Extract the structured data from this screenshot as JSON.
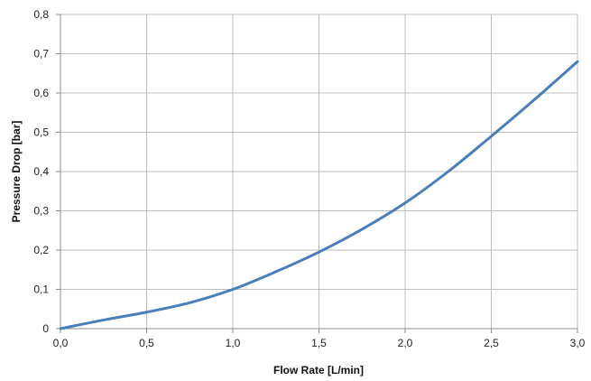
{
  "chart_data": {
    "type": "line",
    "title": "",
    "xlabel": "Flow Rate [L/min]",
    "ylabel": "Pressure Drop [bar]",
    "xlim": [
      0,
      3.0
    ],
    "ylim": [
      0,
      0.8
    ],
    "x_ticks": [
      0,
      0.5,
      1.0,
      1.5,
      2.0,
      2.5,
      3.0
    ],
    "y_ticks": [
      0,
      0.1,
      0.2,
      0.3,
      0.4,
      0.5,
      0.6,
      0.7,
      0.8
    ],
    "x_tick_labels": [
      "0,0",
      "0,5",
      "1,0",
      "1,5",
      "2,0",
      "2,5",
      "3,0"
    ],
    "y_tick_labels": [
      "0",
      "0,1",
      "0,2",
      "0,3",
      "0,4",
      "0,5",
      "0,6",
      "0,7",
      "0,8"
    ],
    "grid": true,
    "legend": "none",
    "series": [
      {
        "color": "#4a7ebb",
        "x": [
          0.0,
          0.25,
          0.5,
          0.75,
          1.0,
          1.25,
          1.5,
          1.75,
          2.0,
          2.25,
          2.5,
          2.75,
          3.0
        ],
        "y": [
          0.0,
          0.022,
          0.042,
          0.066,
          0.1,
          0.145,
          0.195,
          0.253,
          0.32,
          0.4,
          0.49,
          0.583,
          0.68
        ]
      }
    ]
  }
}
